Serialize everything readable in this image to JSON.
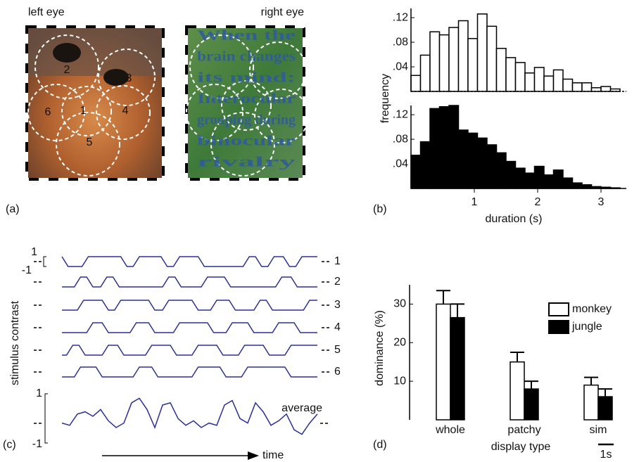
{
  "panel_a": {
    "panel_label": "(a)",
    "left_label": "left eye",
    "right_label": "right eye",
    "regions": [
      "1",
      "2",
      "3",
      "4",
      "5",
      "6"
    ],
    "overlay_text": [
      "When the",
      "brain changes",
      "its mind:",
      "Interocular",
      "grouping during",
      "binocular",
      "rivalry"
    ]
  },
  "chart_data": [
    {
      "type": "histogram",
      "panel_label": "(b)",
      "y_label": "frequency",
      "color": "#ffffff",
      "bins": [
        0,
        0.15,
        0.3,
        0.45,
        0.6,
        0.75,
        0.9,
        1.05,
        1.2,
        1.35,
        1.5,
        1.65,
        1.8,
        1.95,
        2.1,
        2.25,
        2.4,
        2.55,
        2.7,
        2.85,
        3.0,
        3.15,
        3.3
      ],
      "values": [
        0.026,
        0.059,
        0.097,
        0.092,
        0.104,
        0.115,
        0.086,
        0.126,
        0.106,
        0.07,
        0.055,
        0.047,
        0.03,
        0.039,
        0.025,
        0.035,
        0.02,
        0.014,
        0.014,
        0.006,
        0.008,
        0.004
      ],
      "xlim": [
        0,
        3.4
      ],
      "ylim": [
        0,
        0.135
      ],
      "yticks": [
        {
          "value": 0.04,
          "label": ".04"
        },
        {
          "value": 0.08,
          "label": ".08"
        },
        {
          "value": 0.12,
          "label": ".12"
        }
      ]
    },
    {
      "type": "histogram",
      "color": "#000000",
      "x_label": "duration (s)",
      "bins": [
        0,
        0.15,
        0.3,
        0.45,
        0.6,
        0.75,
        0.9,
        1.05,
        1.2,
        1.35,
        1.5,
        1.65,
        1.8,
        1.95,
        2.1,
        2.25,
        2.4,
        2.55,
        2.7,
        2.85,
        3.0,
        3.15,
        3.3
      ],
      "values": [
        0.054,
        0.076,
        0.13,
        0.133,
        0.135,
        0.095,
        0.09,
        0.082,
        0.071,
        0.058,
        0.044,
        0.033,
        0.025,
        0.036,
        0.022,
        0.03,
        0.017,
        0.009,
        0.006,
        0.003,
        0.002,
        0.001
      ],
      "xlim": [
        0,
        3.4
      ],
      "xticks": [
        1,
        2,
        3
      ],
      "ylim": [
        0,
        0.135
      ],
      "yticks": [
        {
          "value": 0.04,
          "label": ".04"
        },
        {
          "value": 0.08,
          "label": ".08"
        },
        {
          "value": 0.12,
          "label": ".12"
        }
      ]
    },
    {
      "type": "line",
      "panel_label": "(c)",
      "y_label": "stimulus contrast",
      "x_label": "time",
      "scale_bar": {
        "value": 1,
        "label": "1s"
      },
      "xlim": [
        0,
        16.5
      ],
      "ylim": [
        -1,
        1
      ],
      "yticks": [
        1,
        -1
      ],
      "series": [
        {
          "name": "1",
          "color": "#2b2f9a",
          "x": [
            0,
            0.4,
            1.3,
            1.7,
            3.8,
            4.2,
            4.6,
            5.0,
            6.4,
            6.8,
            7.2,
            7.6,
            8.8,
            9.2,
            11.7,
            12.1,
            12.5,
            12.9,
            13.3,
            13.7,
            14.3,
            14.7,
            15.1,
            15.5,
            16.5
          ],
          "values": [
            1,
            -1,
            -1,
            1,
            1,
            -1,
            -1,
            1,
            1,
            -1,
            -1,
            1,
            1,
            -1,
            -1,
            1,
            1,
            -1,
            -1,
            1,
            1,
            -1,
            -1,
            1,
            1
          ],
          "yticks": [
            1,
            -1
          ]
        },
        {
          "name": "2",
          "color": "#2b2f9a",
          "x": [
            0,
            0.8,
            1.2,
            1.6,
            2.0,
            2.5,
            2.9,
            3.3,
            3.7,
            6.5,
            6.9,
            7.3,
            7.7,
            9.0,
            9.4,
            10.5,
            10.9,
            13.8,
            14.2,
            14.8,
            15.2,
            16.5
          ],
          "values": [
            -1,
            -1,
            1,
            1,
            -1,
            -1,
            1,
            1,
            -1,
            -1,
            1,
            1,
            -1,
            -1,
            1,
            1,
            -1,
            -1,
            1,
            1,
            -1,
            -1
          ]
        },
        {
          "name": "3",
          "color": "#2b2f9a",
          "x": [
            0,
            1.0,
            1.4,
            2.6,
            3.0,
            3.4,
            3.8,
            5.6,
            6.0,
            6.5,
            6.9,
            8.4,
            8.8,
            9.6,
            10.0,
            10.8,
            11.2,
            12.4,
            12.8,
            13.2,
            13.6,
            15.6,
            16.0,
            16.5
          ],
          "values": [
            -1,
            -1,
            1,
            1,
            -1,
            -1,
            1,
            1,
            -1,
            -1,
            1,
            1,
            -1,
            -1,
            1,
            1,
            -1,
            -1,
            1,
            1,
            -1,
            -1,
            1,
            1
          ]
        },
        {
          "name": "4",
          "color": "#2b2f9a",
          "x": [
            0,
            1.6,
            2.0,
            2.6,
            3.0,
            4.4,
            4.8,
            5.6,
            6.0,
            7.2,
            7.6,
            9.4,
            9.8,
            10.6,
            11.0,
            12.0,
            12.4,
            13.6,
            14.0,
            15.0,
            15.4,
            16.5
          ],
          "values": [
            -1,
            -1,
            1,
            1,
            -1,
            -1,
            1,
            1,
            -1,
            -1,
            1,
            1,
            -1,
            -1,
            1,
            1,
            -1,
            -1,
            1,
            1,
            -1,
            -1
          ]
        },
        {
          "name": "5",
          "color": "#2b2f9a",
          "x": [
            0,
            0.3,
            0.7,
            1.1,
            1.5,
            2.6,
            3.0,
            3.6,
            4.0,
            5.4,
            5.8,
            7.0,
            7.4,
            8.4,
            8.8,
            10.0,
            10.4,
            11.4,
            11.8,
            13.0,
            13.4,
            14.4,
            14.8,
            16.5
          ],
          "values": [
            -1,
            -1,
            1,
            1,
            -1,
            -1,
            1,
            1,
            -1,
            -1,
            1,
            1,
            -1,
            -1,
            1,
            1,
            -1,
            -1,
            1,
            1,
            -1,
            -1,
            1,
            1
          ]
        },
        {
          "name": "6",
          "color": "#2b2f9a",
          "x": [
            0,
            0.8,
            1.2,
            2.2,
            2.6,
            4.6,
            5.0,
            5.8,
            6.2,
            8.4,
            8.8,
            10.2,
            10.6,
            11.6,
            12.0,
            14.4,
            14.8,
            16.5
          ],
          "values": [
            -1,
            -1,
            1,
            1,
            -1,
            -1,
            1,
            1,
            -1,
            -1,
            1,
            1,
            -1,
            -1,
            1,
            1,
            -1,
            -1
          ]
        },
        {
          "name": "average",
          "color": "#2b2f9a",
          "x": [
            0,
            0.5,
            1,
            1.5,
            2,
            2.5,
            3,
            3.5,
            4,
            4.5,
            5,
            5.5,
            6,
            6.5,
            7,
            7.5,
            8,
            8.5,
            9,
            9.5,
            10,
            10.5,
            11,
            11.5,
            12,
            12.5,
            13,
            13.5,
            14,
            14.5,
            15,
            15.5,
            16,
            16.5
          ],
          "values": [
            -0.3,
            -0.4,
            0.1,
            0.2,
            0.0,
            0.3,
            -0.2,
            -0.5,
            -0.3,
            0.6,
            0.8,
            0.3,
            -0.5,
            0.5,
            0.6,
            -0.1,
            -0.4,
            -0.2,
            -0.5,
            -0.3,
            -0.4,
            0.5,
            0.7,
            -0.1,
            -0.3,
            0.6,
            0.2,
            -0.4,
            -0.2,
            0.1,
            -0.6,
            -0.8,
            -0.3,
            0.1
          ]
        }
      ]
    },
    {
      "type": "bar",
      "panel_label": "(d)",
      "y_label": "dominance (%)",
      "x_label": "display type",
      "categories": [
        "whole",
        "patchy",
        "sim"
      ],
      "series": [
        {
          "name": "monkey",
          "color": "#ffffff",
          "values": [
            30,
            15,
            9
          ],
          "errors": [
            3.5,
            2.5,
            2
          ]
        },
        {
          "name": "jungle",
          "color": "#000000",
          "values": [
            26.5,
            8,
            6
          ],
          "errors": [
            3.5,
            2,
            2
          ]
        }
      ],
      "ylim": [
        0,
        35
      ],
      "yticks": [
        10,
        20,
        30
      ],
      "legend": "upper right"
    }
  ]
}
